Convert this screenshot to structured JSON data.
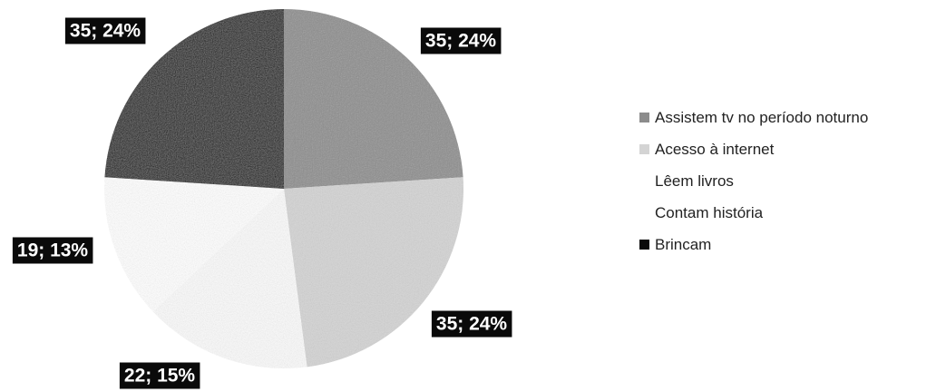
{
  "chart_data": {
    "type": "pie",
    "title": "",
    "categories": [
      "Assistem  tv no período noturno",
      "Acesso à internet",
      "Lêem livros",
      "Contam história",
      "Brincam"
    ],
    "values": [
      35,
      35,
      22,
      19,
      35
    ],
    "percents": [
      "24%",
      "24%",
      "15%",
      "13%",
      "24%"
    ],
    "data_labels": [
      "35; 24%",
      "35; 24%",
      "22; 15%",
      "19; 13%",
      "35; 24%"
    ],
    "colors": [
      "#8c8c8c",
      "#d4d4d4",
      "#fbfbfb",
      "#ffffff",
      "#0a0a0a"
    ],
    "legend_position": "right",
    "start_angle_deg": 0,
    "direction": "clockwise"
  }
}
